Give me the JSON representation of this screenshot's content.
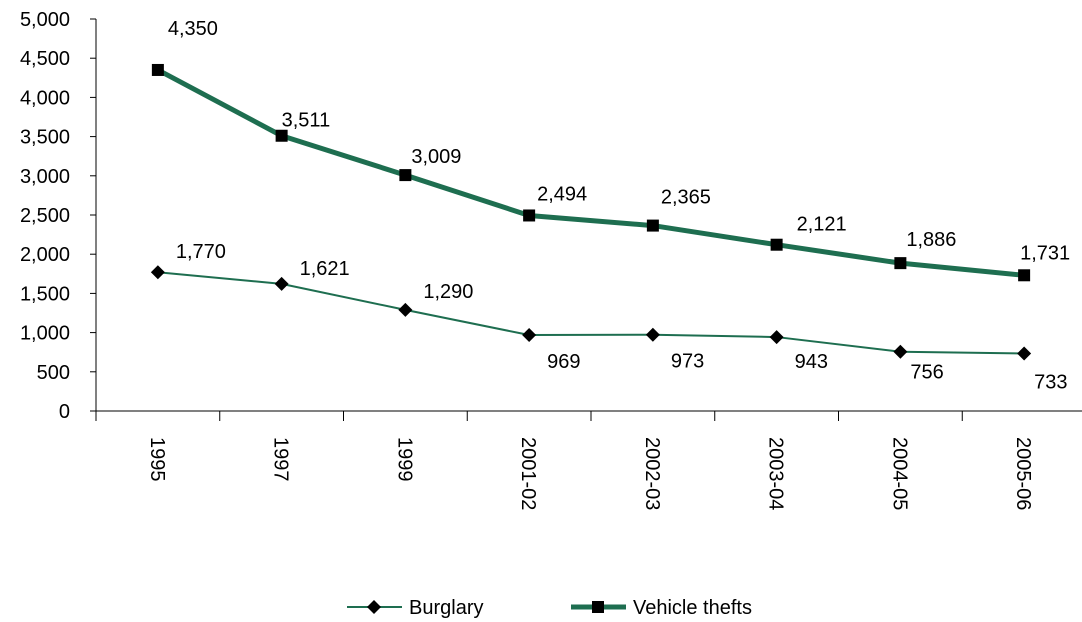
{
  "chart_data": {
    "type": "line",
    "categories": [
      "1995",
      "1997",
      "1999",
      "2001-02",
      "2002-03",
      "2003-04",
      "2004-05",
      "2005-06"
    ],
    "series": [
      {
        "name": "Burglary",
        "values": [
          1770,
          1621,
          1290,
          969,
          973,
          943,
          756,
          733
        ],
        "labels": [
          "1,770",
          "1,621",
          "1,290",
          "969",
          "973",
          "943",
          "756",
          "733"
        ],
        "marker": "diamond",
        "color": "#1e6e50"
      },
      {
        "name": "Vehicle thefts",
        "values": [
          4350,
          3511,
          3009,
          2494,
          2365,
          2121,
          1886,
          1731
        ],
        "labels": [
          "4,350",
          "3,511",
          "3,009",
          "2,494",
          "2,365",
          "2,121",
          "1,886",
          "1,731"
        ],
        "marker": "square",
        "color": "#1e6e50"
      }
    ],
    "ylim": [
      0,
      5000
    ],
    "yticks": [
      0,
      500,
      1000,
      1500,
      2000,
      2500,
      3000,
      3500,
      4000,
      4500,
      5000
    ],
    "ytick_labels": [
      "0",
      "500",
      "1,000",
      "1,500",
      "2,000",
      "2,500",
      "3,000",
      "3,500",
      "4,000",
      "4,500",
      "5,000"
    ],
    "grid": false,
    "legend_position": "bottom"
  }
}
